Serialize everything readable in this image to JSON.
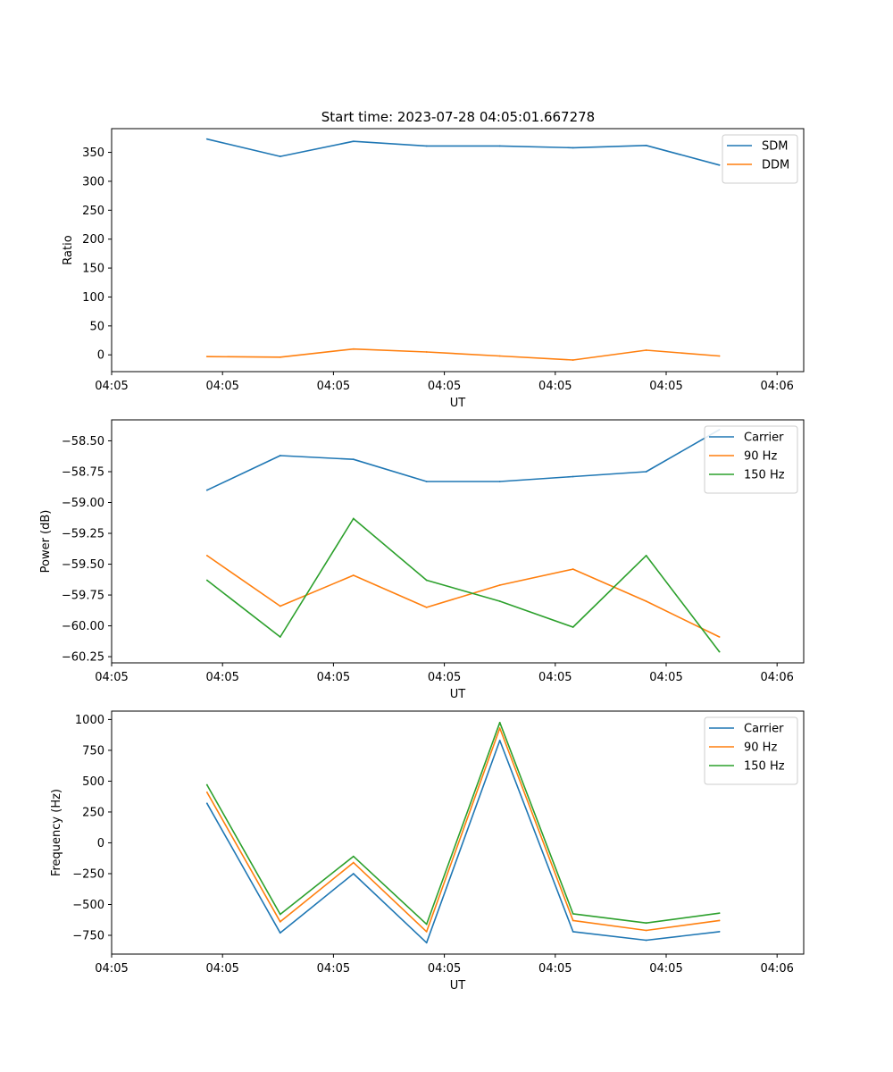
{
  "figure_title": "Start time: 2023-07-28 04:05:01.667278",
  "chart_data": [
    {
      "type": "line",
      "ylabel": "Ratio",
      "xlabel": "UT",
      "x": [
        0.86,
        1.52,
        2.18,
        2.84,
        3.5,
        4.16,
        4.82,
        5.48
      ],
      "xlim": [
        0.0,
        6.24
      ],
      "ylim": [
        -29,
        391
      ],
      "x_ticks": [
        {
          "pos": 0.0,
          "label": "04:05"
        },
        {
          "pos": 1.0,
          "label": "04:05"
        },
        {
          "pos": 2.0,
          "label": "04:05"
        },
        {
          "pos": 3.0,
          "label": "04:05"
        },
        {
          "pos": 4.0,
          "label": "04:05"
        },
        {
          "pos": 5.0,
          "label": "04:05"
        },
        {
          "pos": 6.0,
          "label": "04:06"
        }
      ],
      "y_ticks": [
        0,
        50,
        100,
        150,
        200,
        250,
        300,
        350
      ],
      "y_tick_labels": [
        "0",
        "50",
        "100",
        "150",
        "200",
        "250",
        "300",
        "350"
      ],
      "legend_position": "top-right",
      "series": [
        {
          "name": "SDM",
          "color": "#1f77b4",
          "values": [
            373,
            343,
            369,
            361,
            361,
            358,
            362,
            328
          ]
        },
        {
          "name": "DDM",
          "color": "#ff7f0e",
          "values": [
            -3,
            -4,
            10,
            5,
            -2,
            -9,
            8,
            -2
          ]
        }
      ]
    },
    {
      "type": "line",
      "ylabel": "Power (dB)",
      "xlabel": "UT",
      "x": [
        0.86,
        1.52,
        2.18,
        2.84,
        3.5,
        4.16,
        4.82,
        5.48
      ],
      "xlim": [
        0.0,
        6.24
      ],
      "ylim": [
        -60.3,
        -58.33
      ],
      "x_ticks": [
        {
          "pos": 0.0,
          "label": "04:05"
        },
        {
          "pos": 1.0,
          "label": "04:05"
        },
        {
          "pos": 2.0,
          "label": "04:05"
        },
        {
          "pos": 3.0,
          "label": "04:05"
        },
        {
          "pos": 4.0,
          "label": "04:05"
        },
        {
          "pos": 5.0,
          "label": "04:05"
        },
        {
          "pos": 6.0,
          "label": "04:06"
        }
      ],
      "y_ticks": [
        -60.25,
        -60.0,
        -59.75,
        -59.5,
        -59.25,
        -59.0,
        -58.75,
        -58.5
      ],
      "y_tick_labels": [
        "−60.25",
        "−60.00",
        "−59.75",
        "−59.50",
        "−59.25",
        "−59.00",
        "−58.75",
        "−58.50"
      ],
      "legend_position": "top-right",
      "series": [
        {
          "name": "Carrier",
          "color": "#1f77b4",
          "values": [
            -58.9,
            -58.62,
            -58.65,
            -58.83,
            -58.83,
            -58.79,
            -58.75,
            -58.41
          ]
        },
        {
          "name": "90 Hz",
          "color": "#ff7f0e",
          "values": [
            -59.43,
            -59.84,
            -59.59,
            -59.85,
            -59.67,
            -59.54,
            -59.8,
            -60.09
          ]
        },
        {
          "name": "150 Hz",
          "color": "#2ca02c",
          "values": [
            -59.63,
            -60.09,
            -59.13,
            -59.63,
            -59.8,
            -60.01,
            -59.43,
            -60.21
          ]
        }
      ]
    },
    {
      "type": "line",
      "ylabel": "Frequency (Hz)",
      "xlabel": "UT",
      "x": [
        0.86,
        1.52,
        2.18,
        2.84,
        3.5,
        4.16,
        4.82,
        5.48
      ],
      "xlim": [
        0.0,
        6.24
      ],
      "ylim": [
        -902,
        1068
      ],
      "x_ticks": [
        {
          "pos": 0.0,
          "label": "04:05"
        },
        {
          "pos": 1.0,
          "label": "04:05"
        },
        {
          "pos": 2.0,
          "label": "04:05"
        },
        {
          "pos": 3.0,
          "label": "04:05"
        },
        {
          "pos": 4.0,
          "label": "04:05"
        },
        {
          "pos": 5.0,
          "label": "04:05"
        },
        {
          "pos": 6.0,
          "label": "04:06"
        }
      ],
      "y_ticks": [
        -750,
        -500,
        -250,
        0,
        250,
        500,
        750,
        1000
      ],
      "y_tick_labels": [
        "−750",
        "−500",
        "−250",
        "0",
        "250",
        "500",
        "750",
        "1000"
      ],
      "legend_position": "top-right",
      "series": [
        {
          "name": "Carrier",
          "color": "#1f77b4",
          "values": [
            320,
            -730,
            -250,
            -810,
            830,
            -720,
            -790,
            -720
          ]
        },
        {
          "name": "90 Hz",
          "color": "#ff7f0e",
          "values": [
            410,
            -640,
            -160,
            -720,
            930,
            -630,
            -710,
            -630
          ]
        },
        {
          "name": "150 Hz",
          "color": "#2ca02c",
          "values": [
            470,
            -580,
            -110,
            -660,
            975,
            -575,
            -650,
            -570
          ]
        }
      ]
    }
  ]
}
